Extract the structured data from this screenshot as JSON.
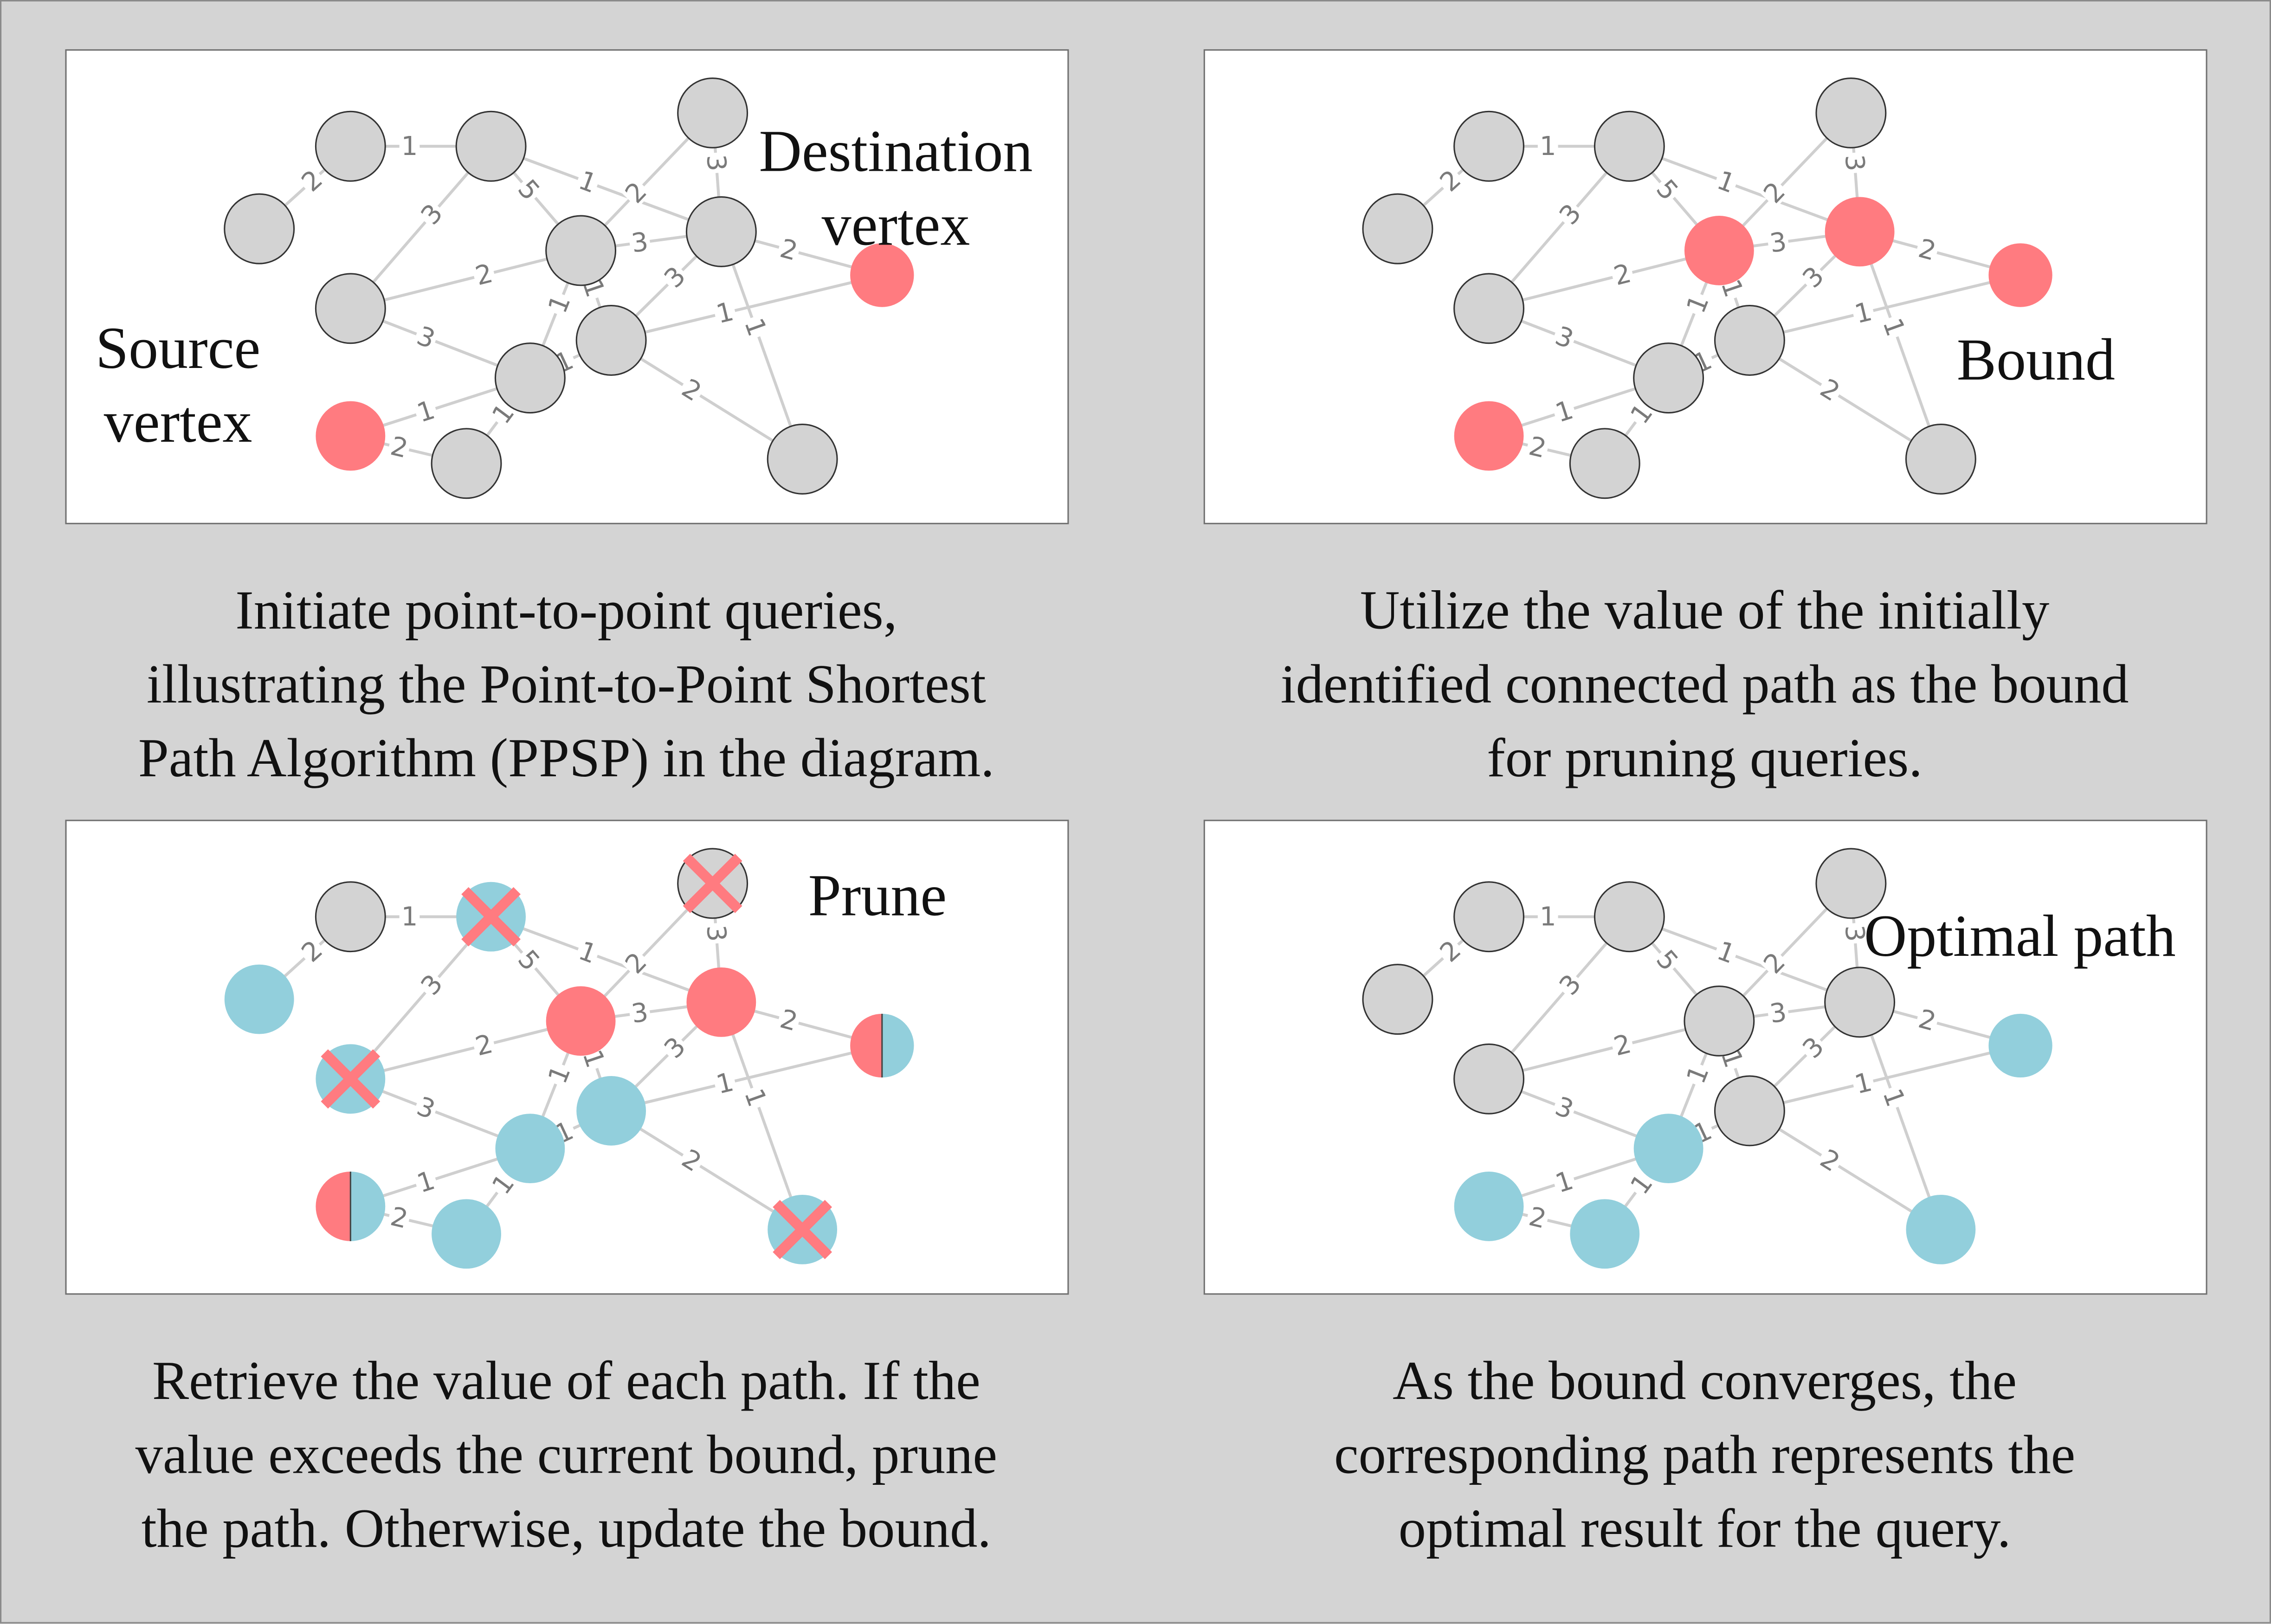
{
  "colors": {
    "node_default": "#d3d3d3",
    "node_red": "#ff7b80",
    "node_blue": "#92cfdc",
    "edge": "#cfcfcf",
    "cross": "#ff7b80",
    "background": "#d4d4d4"
  },
  "panels": [
    {
      "id": "p1",
      "labels": [
        {
          "id": "destination",
          "text_lines": [
            "Destination",
            "vertex"
          ]
        },
        {
          "id": "source",
          "text_lines": [
            "Source",
            "vertex"
          ]
        }
      ],
      "caption_lines": [
        "Initiate point-to-point queries,",
        "illustrating the Point-to-Point Shortest",
        "Path Algorithm (PPSP) in the diagram."
      ],
      "node_states": {
        "A": "gray",
        "B": "gray",
        "C": "gray",
        "D": "gray",
        "E": "gray",
        "F": "gray",
        "G": "gray",
        "H": "gray",
        "I": "gray",
        "J": "red",
        "K": "red",
        "L": "gray",
        "M": "gray"
      },
      "crossed": []
    },
    {
      "id": "p2",
      "labels": [
        {
          "id": "bound",
          "text_lines": [
            "Bound"
          ]
        }
      ],
      "caption_lines": [
        "Utilize the value of the initially",
        "identified connected path as the bound",
        "for pruning queries."
      ],
      "node_states": {
        "A": "gray",
        "B": "gray",
        "C": "gray",
        "D": "gray",
        "E": "red",
        "F": "red",
        "G": "gray",
        "H": "gray",
        "I": "gray",
        "J": "red",
        "K": "red",
        "L": "gray",
        "M": "gray"
      },
      "crossed": []
    },
    {
      "id": "p3",
      "labels": [
        {
          "id": "prune",
          "text_lines": [
            "Prune"
          ]
        }
      ],
      "caption_lines": [
        "Retrieve the value of each path. If the",
        "value exceeds the current bound, prune",
        "the path. Otherwise, update the bound."
      ],
      "node_states": {
        "A": "gray",
        "B": "blue",
        "C": "gray",
        "D": "blue",
        "E": "red",
        "F": "red",
        "G": "blue",
        "H": "blue",
        "I": "blue",
        "J": "half",
        "K": "half",
        "L": "blue",
        "M": "blue"
      },
      "crossed": [
        "B",
        "C",
        "H",
        "M"
      ]
    },
    {
      "id": "p4",
      "labels": [
        {
          "id": "optimal",
          "text_lines": [
            "Optimal path"
          ]
        }
      ],
      "caption_lines": [
        "As the bound converges, the",
        "corresponding path represents the",
        "optimal result for the query."
      ],
      "node_states": {
        "A": "gray",
        "B": "gray",
        "C": "gray",
        "D": "gray",
        "E": "gray",
        "F": "gray",
        "G": "gray",
        "H": "gray",
        "I": "blue",
        "J": "blue",
        "K": "blue",
        "L": "blue",
        "M": "blue"
      },
      "crossed": []
    }
  ],
  "graph": {
    "nodes": [
      "A",
      "B",
      "C",
      "D",
      "E",
      "F",
      "G",
      "H",
      "I",
      "J",
      "K",
      "L",
      "M"
    ],
    "edges": [
      {
        "from": "A",
        "to": "B",
        "weight": "1"
      },
      {
        "from": "A",
        "to": "D",
        "weight": "2"
      },
      {
        "from": "B",
        "to": "E",
        "weight": "5"
      },
      {
        "from": "B",
        "to": "F",
        "weight": "1"
      },
      {
        "from": "B",
        "to": "H",
        "weight": "3"
      },
      {
        "from": "C",
        "to": "F",
        "weight": "3"
      },
      {
        "from": "E",
        "to": "C",
        "weight": "2"
      },
      {
        "from": "E",
        "to": "F",
        "weight": "3"
      },
      {
        "from": "E",
        "to": "G",
        "weight": "1"
      },
      {
        "from": "E",
        "to": "H",
        "weight": "2"
      },
      {
        "from": "E",
        "to": "I",
        "weight": "1"
      },
      {
        "from": "F",
        "to": "G",
        "weight": "3"
      },
      {
        "from": "F",
        "to": "J",
        "weight": "2"
      },
      {
        "from": "F",
        "to": "M",
        "weight": "1"
      },
      {
        "from": "G",
        "to": "J",
        "weight": "1"
      },
      {
        "from": "G",
        "to": "M",
        "weight": "2"
      },
      {
        "from": "H",
        "to": "I",
        "weight": "3"
      },
      {
        "from": "I",
        "to": "G",
        "weight": "1"
      },
      {
        "from": "I",
        "to": "L",
        "weight": "1"
      },
      {
        "from": "K",
        "to": "L",
        "weight": "2"
      },
      {
        "from": "K",
        "to": "I",
        "weight": "1"
      },
      {
        "from": "G",
        "to": "I",
        "weight": "1"
      }
    ]
  }
}
